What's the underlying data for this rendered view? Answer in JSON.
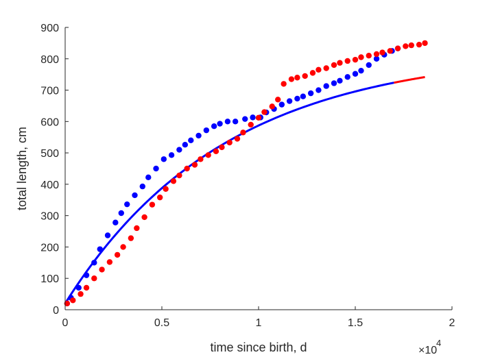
{
  "chart_data": {
    "type": "scatter",
    "xlabel": "time since birth, d",
    "ylabel": "total length, cm",
    "x_exponent_label": "×10",
    "x_exponent_power": "4",
    "xlim": [
      0,
      20000
    ],
    "ylim": [
      0,
      900
    ],
    "x_ticks": [
      0,
      5000,
      10000,
      15000,
      20000
    ],
    "x_tick_labels": [
      "0",
      "0.5",
      "1",
      "1.5",
      "2"
    ],
    "y_ticks": [
      0,
      100,
      200,
      300,
      400,
      500,
      600,
      700,
      800,
      900
    ],
    "y_tick_labels": [
      "0",
      "100",
      "200",
      "300",
      "400",
      "500",
      "600",
      "700",
      "800",
      "900"
    ],
    "grid": false,
    "colors": {
      "blue": "#0000ff",
      "red": "#ff0000",
      "axis": "#262626"
    },
    "series": [
      {
        "kind": "points",
        "color": "blue",
        "points": [
          [
            100,
            20
          ],
          [
            300,
            38
          ],
          [
            700,
            70
          ],
          [
            1100,
            110
          ],
          [
            1500,
            150
          ],
          [
            1800,
            193
          ],
          [
            2200,
            237
          ],
          [
            2600,
            278
          ],
          [
            2900,
            308
          ],
          [
            3200,
            336
          ],
          [
            3600,
            365
          ],
          [
            4000,
            393
          ],
          [
            4300,
            422
          ],
          [
            4700,
            450
          ],
          [
            5100,
            480
          ],
          [
            5500,
            493
          ],
          [
            5900,
            510
          ],
          [
            6200,
            526
          ],
          [
            6500,
            540
          ],
          [
            6900,
            555
          ],
          [
            7300,
            572
          ],
          [
            7700,
            585
          ],
          [
            8000,
            593
          ],
          [
            8400,
            600
          ],
          [
            8800,
            600
          ],
          [
            9300,
            608
          ],
          [
            9700,
            613
          ],
          [
            10100,
            613
          ],
          [
            10400,
            629
          ],
          [
            10800,
            640
          ],
          [
            11200,
            654
          ],
          [
            11600,
            665
          ],
          [
            12000,
            673
          ],
          [
            12300,
            680
          ],
          [
            12700,
            690
          ],
          [
            13100,
            700
          ],
          [
            13500,
            713
          ],
          [
            13900,
            722
          ],
          [
            14200,
            730
          ],
          [
            14600,
            742
          ],
          [
            15000,
            752
          ],
          [
            15300,
            762
          ],
          [
            15700,
            780
          ],
          [
            16100,
            800
          ],
          [
            16500,
            813
          ],
          [
            16900,
            825
          ],
          [
            17200,
            833
          ]
        ]
      },
      {
        "kind": "points",
        "color": "red",
        "points": [
          [
            100,
            20
          ],
          [
            400,
            30
          ],
          [
            800,
            50
          ],
          [
            1100,
            70
          ],
          [
            1500,
            100
          ],
          [
            1900,
            128
          ],
          [
            2300,
            152
          ],
          [
            2700,
            175
          ],
          [
            3000,
            200
          ],
          [
            3400,
            228
          ],
          [
            3700,
            260
          ],
          [
            4100,
            295
          ],
          [
            4500,
            335
          ],
          [
            4900,
            358
          ],
          [
            5200,
            385
          ],
          [
            5600,
            410
          ],
          [
            5900,
            428
          ],
          [
            6300,
            450
          ],
          [
            6700,
            462
          ],
          [
            7000,
            480
          ],
          [
            7400,
            493
          ],
          [
            7800,
            505
          ],
          [
            8100,
            518
          ],
          [
            8500,
            533
          ],
          [
            8900,
            545
          ],
          [
            9200,
            565
          ],
          [
            9600,
            590
          ],
          [
            10000,
            612
          ],
          [
            10300,
            630
          ],
          [
            10700,
            648
          ],
          [
            11000,
            670
          ],
          [
            11300,
            720
          ],
          [
            11700,
            735
          ],
          [
            12000,
            740
          ],
          [
            12400,
            745
          ],
          [
            12800,
            755
          ],
          [
            13100,
            765
          ],
          [
            13500,
            770
          ],
          [
            13900,
            780
          ],
          [
            14200,
            787
          ],
          [
            14600,
            793
          ],
          [
            15000,
            797
          ],
          [
            15300,
            805
          ],
          [
            15700,
            810
          ],
          [
            16100,
            815
          ],
          [
            16400,
            820
          ],
          [
            16800,
            825
          ],
          [
            17200,
            833
          ],
          [
            17600,
            840
          ],
          [
            17900,
            843
          ],
          [
            18300,
            845
          ],
          [
            18600,
            850
          ]
        ]
      },
      {
        "kind": "line",
        "color": "blue",
        "formula": "825 - 805*exp(-x/8200)",
        "x_range": [
          0,
          17000
        ]
      },
      {
        "kind": "line",
        "color": "red",
        "formula": "825 - 805*exp(-x/8200)",
        "x_range": [
          17000,
          18600
        ]
      }
    ]
  }
}
